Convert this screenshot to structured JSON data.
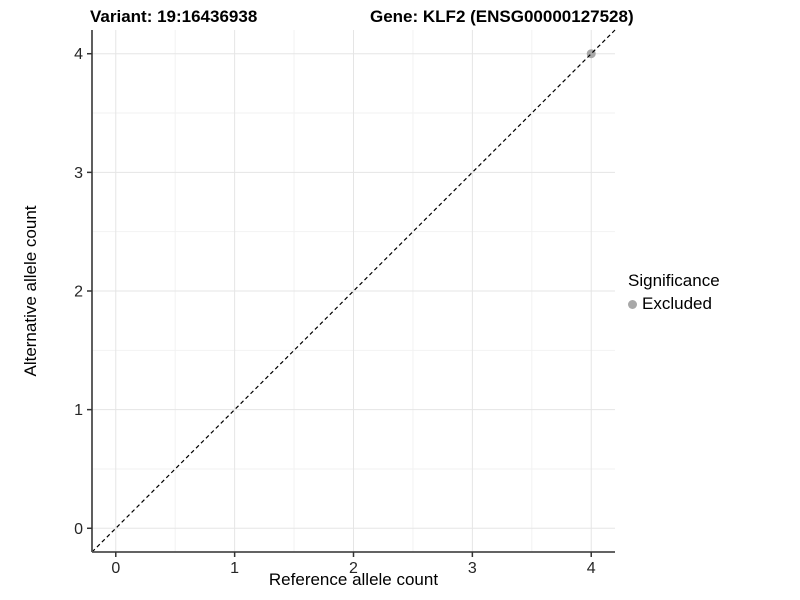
{
  "chart_data": {
    "type": "scatter",
    "title_variant": "Variant: 19:16436938",
    "title_gene": "Gene: KLF2 (ENSG00000127528)",
    "xlabel": "Reference allele count",
    "ylabel": "Alternative allele count",
    "xlim": [
      -0.2,
      4.2
    ],
    "ylim": [
      -0.2,
      4.2
    ],
    "xticks": [
      0,
      1,
      2,
      3,
      4
    ],
    "yticks": [
      0,
      1,
      2,
      3,
      4
    ],
    "minor_gridlines": [
      0.5,
      1.5,
      2.5,
      3.5
    ],
    "grid": "major+minor",
    "reference_line": {
      "type": "identity",
      "slope": 1,
      "intercept": 0,
      "style": "dashed",
      "color": "#000000"
    },
    "series": [
      {
        "name": "Excluded",
        "color": "#a8a8a8",
        "points": [
          [
            4,
            4
          ]
        ]
      }
    ],
    "legend": {
      "title": "Significance",
      "position": "right",
      "entries": [
        {
          "label": "Excluded",
          "color": "#a8a8a8"
        }
      ]
    }
  },
  "colors": {
    "background": "#ffffff",
    "grid_major": "#e5e5e5",
    "grid_minor": "#f2f2f2",
    "axis_line": "#4d4d4d",
    "tick_mark": "#333333",
    "tick_label": "#262626",
    "title_text": "#000000",
    "point": "#a8a8a8"
  }
}
